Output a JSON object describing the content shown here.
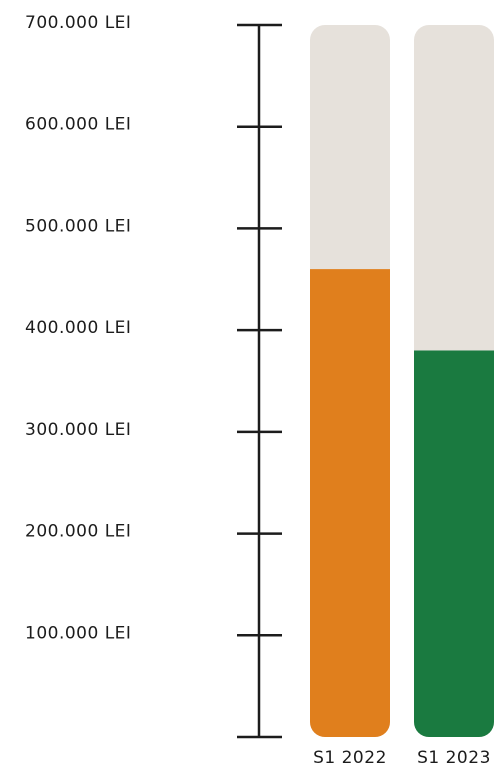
{
  "chart_data": {
    "type": "bar",
    "categories": [
      "S1 2022",
      "S1 2023"
    ],
    "values": [
      460000,
      380000
    ],
    "colors": [
      "#e07f1d",
      "#1a7a40"
    ],
    "track_color": "#e6e1db",
    "ylim": [
      0,
      700000
    ],
    "yticks": [
      {
        "value": 100000,
        "label": "100.000 LEI"
      },
      {
        "value": 200000,
        "label": "200.000 LEI"
      },
      {
        "value": 300000,
        "label": "300.000 LEI"
      },
      {
        "value": 400000,
        "label": "400.000 LEI"
      },
      {
        "value": 500000,
        "label": "500.000 LEI"
      },
      {
        "value": 600000,
        "label": "600.000 LEI"
      },
      {
        "value": 700000,
        "label": "700.000 LEI"
      }
    ]
  }
}
